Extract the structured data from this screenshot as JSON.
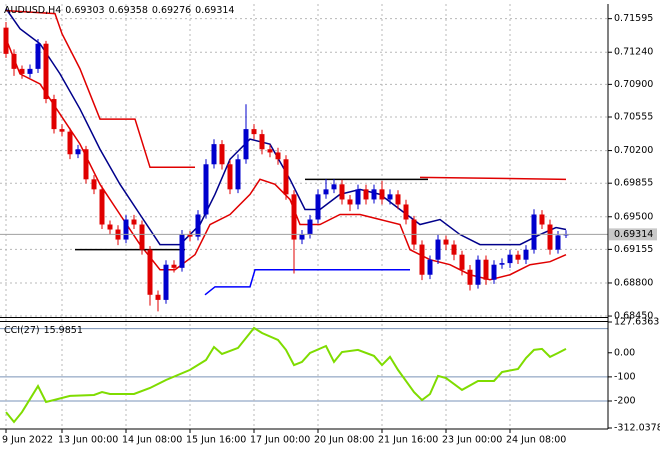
{
  "chart_data": [
    {
      "type": "candlestick",
      "title": "AUDUSD,H4",
      "categories": [
        "9 Jun 2022",
        null,
        null,
        null,
        null,
        null,
        null,
        "13 Jun 00:00",
        null,
        null,
        null,
        null,
        null,
        null,
        null,
        "14 Jun 08:00",
        null,
        null,
        null,
        null,
        null,
        null,
        null,
        "15 Jun 16:00",
        null,
        null,
        null,
        null,
        null,
        null,
        null,
        "17 Jun 00:00",
        null,
        null,
        null,
        null,
        null,
        null,
        null,
        "20 Jun 08:00",
        null,
        null,
        null,
        null,
        null,
        null,
        null,
        "21 Jun 16:00",
        null,
        null,
        null,
        null,
        null,
        null,
        null,
        "23 Jun 00:00",
        null,
        null,
        null,
        null,
        null,
        null,
        null,
        "24 Jun 08:00",
        null,
        null,
        null,
        null,
        null,
        null,
        null
      ],
      "open": [
        0.715,
        0.71223,
        0.71064,
        0.71011,
        0.71064,
        0.7133,
        0.70745,
        0.70427,
        0.704,
        0.70161,
        0.70214,
        0.69896,
        0.6979,
        0.69418,
        0.69365,
        0.69259,
        0.69471,
        0.69418,
        0.69152,
        0.68675,
        0.68621,
        0.68993,
        0.6896,
        0.69312,
        0.6929,
        0.69524,
        0.70055,
        0.70268,
        0.70055,
        0.6979,
        0.70108,
        0.70427,
        0.70374,
        0.70214,
        0.7018,
        0.70108,
        0.69737,
        0.69259,
        0.69312,
        0.69471,
        0.69737,
        0.6979,
        0.69843,
        0.69683,
        0.6963,
        0.6979,
        0.69683,
        0.6979,
        0.69683,
        0.69737,
        0.6963,
        0.69471,
        0.69206,
        0.68887,
        0.69046,
        0.69259,
        0.69206,
        0.69099,
        0.6894,
        0.68781,
        0.69046,
        0.68834,
        0.68993,
        0.6901,
        0.69099,
        0.69046,
        0.69152,
        0.69524,
        0.69418,
        0.69152,
        0.69303
      ],
      "high": [
        0.7156,
        0.7127,
        0.711,
        0.7111,
        0.7138,
        0.7136,
        0.7079,
        0.7048,
        0.7044,
        0.7026,
        0.7025,
        0.6994,
        0.6983,
        0.6946,
        0.6941,
        0.6952,
        0.6952,
        0.6946,
        0.6919,
        0.6872,
        0.6904,
        0.6904,
        0.6936,
        0.6935,
        0.6957,
        0.7011,
        0.7032,
        0.7031,
        0.701,
        0.7016,
        0.7069,
        0.7048,
        0.7042,
        0.7026,
        0.7023,
        0.7015,
        0.6978,
        0.6936,
        0.6952,
        0.6979,
        0.699,
        0.699,
        0.6989,
        0.6973,
        0.6984,
        0.6984,
        0.6984,
        0.6988,
        0.6979,
        0.6978,
        0.6968,
        0.6951,
        0.6925,
        0.6909,
        0.6931,
        0.693,
        0.6925,
        0.6914,
        0.6899,
        0.6909,
        0.6909,
        0.6904,
        0.6906,
        0.6915,
        0.6914,
        0.692,
        0.6958,
        0.6957,
        0.6947,
        0.6935,
        0.69358
      ],
      "low": [
        0.7118,
        0.7099,
        0.7096,
        0.7097,
        0.7102,
        0.707,
        0.7038,
        0.7035,
        0.7011,
        0.7012,
        0.6985,
        0.6974,
        0.6937,
        0.6931,
        0.692,
        0.6922,
        0.6937,
        0.691,
        0.6856,
        0.685,
        0.6858,
        0.6891,
        0.6892,
        0.6924,
        0.6925,
        0.6948,
        0.7001,
        0.7,
        0.6974,
        0.6975,
        0.7006,
        0.7032,
        0.7016,
        0.7013,
        0.7005,
        0.6968,
        0.689,
        0.6921,
        0.6927,
        0.6943,
        0.6969,
        0.6975,
        0.6963,
        0.6956,
        0.6958,
        0.6963,
        0.6964,
        0.6963,
        0.6963,
        0.6958,
        0.6942,
        0.6915,
        0.6883,
        0.6884,
        0.69,
        0.6915,
        0.6904,
        0.6888,
        0.6872,
        0.6874,
        0.6878,
        0.6879,
        0.6895,
        0.6896,
        0.69,
        0.69,
        0.6911,
        0.6937,
        0.691,
        0.6911,
        0.69276
      ],
      "close": [
        0.71223,
        0.71064,
        0.71011,
        0.71064,
        0.7133,
        0.70745,
        0.70427,
        0.704,
        0.70161,
        0.70214,
        0.69896,
        0.6979,
        0.69418,
        0.69365,
        0.69259,
        0.69471,
        0.69418,
        0.69152,
        0.68675,
        0.68621,
        0.68993,
        0.6896,
        0.69312,
        0.6929,
        0.69524,
        0.70055,
        0.70268,
        0.70055,
        0.6979,
        0.70108,
        0.70427,
        0.70374,
        0.70214,
        0.7018,
        0.70108,
        0.69737,
        0.69259,
        0.69312,
        0.69471,
        0.69737,
        0.6979,
        0.69843,
        0.69683,
        0.6963,
        0.6979,
        0.69683,
        0.6979,
        0.69683,
        0.69737,
        0.6963,
        0.69471,
        0.69206,
        0.68887,
        0.69046,
        0.69259,
        0.69206,
        0.69099,
        0.6894,
        0.68781,
        0.69046,
        0.68834,
        0.68993,
        0.6901,
        0.69099,
        0.69046,
        0.69152,
        0.69524,
        0.69418,
        0.69152,
        0.69303,
        0.69314
      ],
      "bull_color": "#0000cd",
      "bear_color": "#e00000",
      "ylim": [
        0.6844,
        0.7175
      ],
      "yticks": [
        0.71595,
        {
          "value": 0.7124,
          "label": "0.71240"
        },
        {
          "value": 0.709,
          "label": "0.70900"
        },
        0.70555,
        {
          "value": 0.702,
          "label": "0.70200"
        },
        0.69855,
        {
          "value": 0.695,
          "label": "0.69500"
        },
        0.69155,
        {
          "value": 0.688,
          "label": "0.68800"
        },
        {
          "value": 0.6845,
          "label": "0.68450"
        }
      ],
      "grid": true,
      "overlays": [
        {
          "color": "#00008b",
          "x": [
            0,
            1.75,
            4.25,
            6.75,
            9.25,
            11.75,
            14.25,
            16.75,
            19.25,
            21.75,
            24.25,
            26.125,
            28,
            30.5,
            33,
            35.5,
            37.375,
            39.25,
            41.75,
            44.25,
            46.75,
            49.25,
            51.75,
            54.25,
            56.75,
            59.25,
            61.75,
            64.25,
            66.75,
            68.75,
            70
          ],
          "values": [
            0.71701,
            0.71489,
            0.7133,
            0.71011,
            0.70639,
            0.70214,
            0.69843,
            0.69524,
            0.69206,
            0.69206,
            0.69418,
            0.69737,
            0.70108,
            0.70321,
            0.70268,
            0.69896,
            0.69577,
            0.69577,
            0.69737,
            0.6979,
            0.69737,
            0.69577,
            0.69418,
            0.69471,
            0.69312,
            0.69206,
            0.69206,
            0.69206,
            0.69312,
            0.69386,
            0.69365
          ]
        },
        {
          "color": "#e00000",
          "x": [
            0,
            1.75,
            4.25,
            6.75,
            9.25,
            11.75,
            14.25,
            16.75,
            19.25,
            21.125,
            23.625,
            25.5,
            28,
            30.5,
            31.75,
            33.625,
            35.5,
            36.75,
            39.25,
            41.75,
            44.25,
            46.75,
            49.25,
            50.5,
            53,
            55.5,
            58,
            60.5,
            63,
            65.5,
            68,
            70
          ],
          "values": [
            0.71383,
            0.71011,
            0.70905,
            0.70586,
            0.70268,
            0.69843,
            0.69524,
            0.69206,
            0.6894,
            0.6894,
            0.69099,
            0.69418,
            0.69524,
            0.69737,
            0.69896,
            0.69843,
            0.69683,
            0.69418,
            0.69418,
            0.69524,
            0.69524,
            0.69471,
            0.69418,
            0.69152,
            0.69046,
            0.68993,
            0.68887,
            0.68834,
            0.68887,
            0.68993,
            0.69025,
            0.69099
          ]
        },
        {
          "color": "#e00000",
          "x": [
            0,
            6.125,
            7,
            9.25,
            11.75,
            16.125,
            18,
            23.625
          ],
          "values": [
            0.7168,
            0.71648,
            0.71436,
            0.71064,
            0.70533,
            0.70533,
            0.70023,
            0.70023
          ]
        },
        {
          "color": "#e00000",
          "x": [
            51.75,
            70
          ],
          "values": [
            0.69917,
            0.69896
          ]
        },
        {
          "color": "#000000",
          "x": [
            8.625,
            22.375
          ],
          "values": [
            0.69152,
            0.69152
          ]
        },
        {
          "color": "#000000",
          "x": [
            37.375,
            52.75
          ],
          "values": [
            0.69896,
            0.69896
          ]
        },
        {
          "color": "#0000ff",
          "x": [
            24.875,
            26.125,
            30.5,
            31.125,
            50.5
          ],
          "values": [
            0.68675,
            0.68759,
            0.68759,
            0.6894,
            0.6894
          ]
        }
      ]
    },
    {
      "type": "line",
      "title": "CCI(27)",
      "color": "#7fdc00",
      "x": [
        0,
        1,
        2,
        4,
        5,
        6,
        8,
        11,
        12,
        13,
        16,
        18,
        20,
        23,
        25,
        26,
        27,
        29,
        31,
        32,
        34,
        35,
        36,
        37,
        38,
        40,
        41,
        42,
        44,
        46,
        47,
        48,
        49,
        51,
        52,
        53,
        54,
        55,
        57,
        59,
        61,
        62,
        64,
        65,
        66,
        67,
        68,
        69,
        70
      ],
      "values": [
        -246,
        -287,
        -246,
        -138,
        -204,
        -196,
        -179,
        -175,
        -163,
        -171,
        -171,
        -146,
        -113,
        -71,
        -30,
        24,
        -5,
        20,
        103,
        82,
        53,
        12,
        -51,
        -38,
        -1,
        28,
        -38,
        3,
        12,
        -13,
        -51,
        -17,
        -71,
        -163,
        -196,
        -171,
        -96,
        -105,
        -154,
        -117,
        -117,
        -80,
        -67,
        -22,
        12,
        16,
        -17,
        -1,
        15.9851
      ],
      "ylim": [
        -312.0378,
        127.6363
      ],
      "yticks": [
        127.6363,
        {
          "value": 0,
          "label": "0.00"
        },
        -100,
        -200,
        -312.0378
      ],
      "levels": [
        100,
        -100,
        -200
      ]
    }
  ]
}
